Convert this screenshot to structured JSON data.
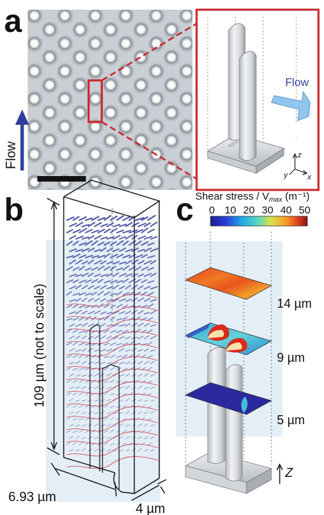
{
  "panels": {
    "a": {
      "letter": "a",
      "flow_side_label": "Flow",
      "flow_arrow_label": "Flow",
      "axis_labels": {
        "z": "z",
        "y": "y",
        "x": "x"
      }
    },
    "b": {
      "letter": "b",
      "height_label": "109 µm (not to scale)",
      "length_label": "6.93 µm",
      "width_label": "4 µm"
    },
    "c": {
      "letter": "c",
      "colorbar_title": "Shear stress / V",
      "colorbar_title_sub": "max",
      "colorbar_title_unit": " (m⁻¹)",
      "colorbar_ticks": [
        "0",
        "10",
        "20",
        "30",
        "40",
        "50"
      ],
      "colorbar_range": [
        0,
        50
      ],
      "slice_labels": [
        "14 µm",
        "9 µm",
        "5 µm"
      ],
      "axis_label": "Z"
    }
  },
  "colors": {
    "highlight_red": "#c8282a",
    "flow_blue": "#2f3f9e",
    "flow_arrow_light": "#8ec6ee",
    "streamline_red": "#d8505a",
    "vector_blue": "#3a3f9a"
  }
}
